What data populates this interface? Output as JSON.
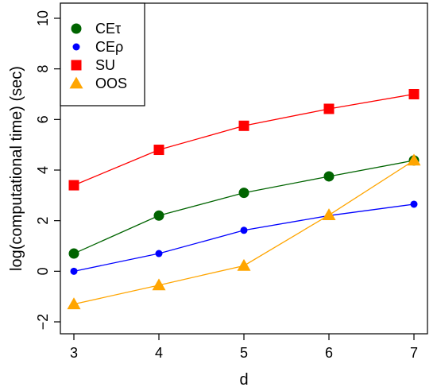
{
  "chart_data": {
    "type": "line",
    "xlabel": "d",
    "ylabel": "log(computational time) (sec)",
    "xlim": [
      3,
      7
    ],
    "ylim": [
      -2,
      10
    ],
    "x": [
      3,
      4,
      5,
      6,
      7
    ],
    "x_ticks": [
      3,
      4,
      5,
      6,
      7
    ],
    "y_ticks": [
      -2,
      0,
      2,
      4,
      6,
      8,
      10
    ],
    "x_tick_labels": [
      "3",
      "4",
      "5",
      "6",
      "7"
    ],
    "y_tick_labels": [
      "−2",
      "0",
      "2",
      "4",
      "6",
      "8",
      "10"
    ],
    "grid": false,
    "legend_position": "top-left",
    "series": [
      {
        "name": "CEτ",
        "marker": "large-circle",
        "color": "#006400",
        "values": [
          0.7,
          2.2,
          3.1,
          3.75,
          4.38
        ]
      },
      {
        "name": "CEρ",
        "marker": "small-circle",
        "color": "#0000FF",
        "values": [
          0.0,
          0.7,
          1.62,
          2.2,
          2.65
        ]
      },
      {
        "name": "SU",
        "marker": "square",
        "color": "#FF0000",
        "values": [
          3.4,
          4.8,
          5.75,
          6.42,
          7.0
        ]
      },
      {
        "name": "OOS",
        "marker": "triangle",
        "color": "#FFA500",
        "values": [
          -1.3,
          -0.55,
          0.22,
          2.22,
          4.38
        ]
      }
    ]
  }
}
